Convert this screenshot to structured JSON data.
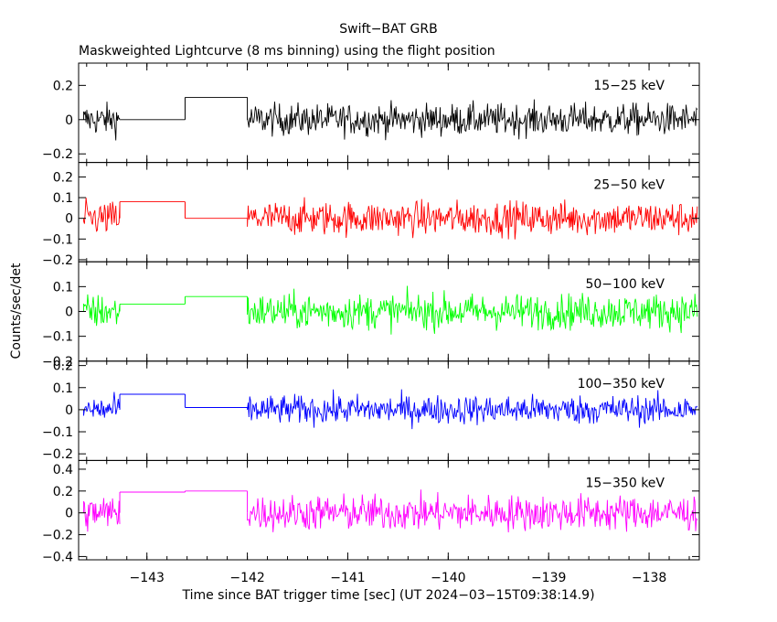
{
  "chart_data": {
    "type": "line",
    "title": "Swift−BAT GRB",
    "subtitle": "Maskweighted Lightcurve (8 ms binning) using the flight position",
    "xlabel": "Time since BAT trigger time [sec] (UT 2024−03−15T09:38:14.9)",
    "ylabel": "Counts/sec/det",
    "xlim": [
      -143.68,
      -137.5
    ],
    "x_ticks": [
      -143,
      -142,
      -141,
      -140,
      -139,
      -138
    ],
    "x_tick_labels": [
      "−143",
      "−142",
      "−141",
      "−140",
      "−139",
      "−138"
    ],
    "panels": [
      {
        "band_label": "15−25 keV",
        "color": "#000000",
        "ylim": [
          -0.25,
          0.33
        ],
        "y_ticks": [
          -0.2,
          0,
          0.2
        ],
        "y_tick_labels": [
          "−0.2",
          "0",
          "0.2"
        ],
        "noise_amp": 0.085,
        "segments": [
          {
            "x0": -143.63,
            "x1": -143.27,
            "type": "noise",
            "level": 0.0
          },
          {
            "x0": -143.27,
            "x1": -142.62,
            "type": "step",
            "level": 0.0
          },
          {
            "x0": -142.62,
            "x1": -142.0,
            "type": "step",
            "level": 0.13
          },
          {
            "x0": -142.0,
            "x1": -137.52,
            "type": "noise",
            "level": 0.0
          }
        ]
      },
      {
        "band_label": "25−50 keV",
        "color": "#ff0000",
        "ylim": [
          -0.21,
          0.27
        ],
        "y_ticks": [
          -0.2,
          -0.1,
          0,
          0.1,
          0.2
        ],
        "y_tick_labels": [
          "−0.2",
          "−0.1",
          "0",
          "0.1",
          "0.2"
        ],
        "noise_amp": 0.075,
        "segments": [
          {
            "x0": -143.63,
            "x1": -143.27,
            "type": "noise",
            "level": 0.0
          },
          {
            "x0": -143.27,
            "x1": -142.62,
            "type": "step",
            "level": 0.08
          },
          {
            "x0": -142.62,
            "x1": -142.0,
            "type": "step",
            "level": 0.0
          },
          {
            "x0": -142.0,
            "x1": -137.52,
            "type": "noise",
            "level": 0.0
          }
        ]
      },
      {
        "band_label": "50−100 keV",
        "color": "#00ff00",
        "ylim": [
          -0.2,
          0.2
        ],
        "y_ticks": [
          -0.2,
          -0.1,
          0,
          0.1
        ],
        "y_tick_labels": [
          "−0.2",
          "−0.1",
          "0",
          "0.1"
        ],
        "noise_amp": 0.065,
        "segments": [
          {
            "x0": -143.63,
            "x1": -143.27,
            "type": "noise",
            "level": 0.0
          },
          {
            "x0": -143.27,
            "x1": -142.62,
            "type": "step",
            "level": 0.03
          },
          {
            "x0": -142.62,
            "x1": -142.0,
            "type": "step",
            "level": 0.06
          },
          {
            "x0": -142.0,
            "x1": -137.52,
            "type": "noise",
            "level": 0.0
          }
        ]
      },
      {
        "band_label": "100−350 keV",
        "color": "#0000ff",
        "ylim": [
          -0.23,
          0.22
        ],
        "y_ticks": [
          -0.2,
          -0.1,
          0,
          0.1,
          0.2
        ],
        "y_tick_labels": [
          "−0.2",
          "−0.1",
          "0",
          "0.1",
          "0.2"
        ],
        "noise_amp": 0.06,
        "segments": [
          {
            "x0": -143.63,
            "x1": -143.27,
            "type": "noise",
            "level": 0.0
          },
          {
            "x0": -143.27,
            "x1": -142.62,
            "type": "step",
            "level": 0.07
          },
          {
            "x0": -142.62,
            "x1": -142.0,
            "type": "step",
            "level": 0.01
          },
          {
            "x0": -142.0,
            "x1": -137.52,
            "type": "noise",
            "level": 0.0
          }
        ]
      },
      {
        "band_label": "15−350 keV",
        "color": "#ff00ff",
        "ylim": [
          -0.43,
          0.48
        ],
        "y_ticks": [
          -0.4,
          -0.2,
          0,
          0.2,
          0.4
        ],
        "y_tick_labels": [
          "−0.4",
          "−0.2",
          "0",
          "0.2",
          "0.4"
        ],
        "noise_amp": 0.15,
        "segments": [
          {
            "x0": -143.63,
            "x1": -143.27,
            "type": "noise",
            "level": 0.0
          },
          {
            "x0": -143.27,
            "x1": -142.62,
            "type": "step",
            "level": 0.19
          },
          {
            "x0": -142.62,
            "x1": -142.0,
            "type": "step",
            "level": 0.2
          },
          {
            "x0": -142.0,
            "x1": -137.52,
            "type": "noise",
            "level": 0.0
          }
        ]
      }
    ]
  }
}
